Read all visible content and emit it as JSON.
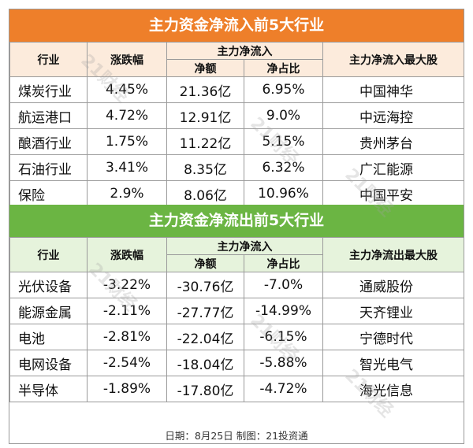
{
  "inflow": {
    "title": "主力资金净流入前5大行业",
    "headers": {
      "industry": "行业",
      "change": "涨跌幅",
      "flow_group": "主力净流入",
      "net_amount": "净额",
      "net_ratio": "净占比",
      "top_stock": "主力净流入最大股"
    },
    "rows": [
      {
        "industry": "煤炭行业",
        "change": "4.45%",
        "net_amount": "21.36亿",
        "net_ratio": "6.95%",
        "top_stock": "中国神华"
      },
      {
        "industry": "航运港口",
        "change": "4.72%",
        "net_amount": "12.91亿",
        "net_ratio": "9.0%",
        "top_stock": "中远海控"
      },
      {
        "industry": "酿酒行业",
        "change": "1.75%",
        "net_amount": "11.22亿",
        "net_ratio": "5.15%",
        "top_stock": "贵州茅台"
      },
      {
        "industry": "石油行业",
        "change": "3.41%",
        "net_amount": "8.35亿",
        "net_ratio": "6.32%",
        "top_stock": "广汇能源"
      },
      {
        "industry": "保险",
        "change": "2.9%",
        "net_amount": "8.06亿",
        "net_ratio": "10.96%",
        "top_stock": "中国平安"
      }
    ]
  },
  "outflow": {
    "title": "主力资金净流出前5大行业",
    "headers": {
      "industry": "行业",
      "change": "涨跌幅",
      "flow_group": "主力净流入",
      "net_amount": "净额",
      "net_ratio": "净占比",
      "top_stock": "主力净流出最大股"
    },
    "rows": [
      {
        "industry": "光伏设备",
        "change": "-3.22%",
        "net_amount": "-30.76亿",
        "net_ratio": "-7.0%",
        "top_stock": "通威股份"
      },
      {
        "industry": "能源金属",
        "change": "-2.11%",
        "net_amount": "-27.77亿",
        "net_ratio": "-14.99%",
        "top_stock": "天齐锂业"
      },
      {
        "industry": "电池",
        "change": "-2.81%",
        "net_amount": "-22.04亿",
        "net_ratio": "-6.15%",
        "top_stock": "宁德时代"
      },
      {
        "industry": "电网设备",
        "change": "-2.54%",
        "net_amount": "-18.04亿",
        "net_ratio": "-5.88%",
        "top_stock": "智光电气"
      },
      {
        "industry": "半导体",
        "change": "-1.89%",
        "net_amount": "-17.80亿",
        "net_ratio": "-4.72%",
        "top_stock": "海光信息"
      }
    ]
  },
  "footer": "日期：8月25日 制图：21投资通",
  "watermark": "21财经",
  "colors": {
    "inflow_banner": "#ee7f2a",
    "inflow_header": "#fcebdc",
    "outflow_banner": "#6bb543",
    "outflow_header": "#e6f3dc",
    "border": "#9a9a9a"
  }
}
